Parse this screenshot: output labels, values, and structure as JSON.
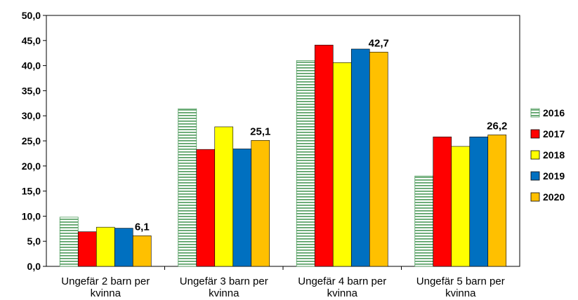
{
  "chart_data": {
    "type": "bar",
    "categories": [
      [
        "Ungefär 2 barn per",
        "kvinna"
      ],
      [
        "Ungefär 3 barn per",
        "kvinna"
      ],
      [
        "Ungefär 4 barn per",
        "kvinna"
      ],
      [
        "Ungefär 5 barn per",
        "kvinna"
      ]
    ],
    "series": [
      {
        "name": "2016",
        "values": [
          9.8,
          31.4,
          41.0,
          18.0
        ],
        "color": "#ffffff",
        "pattern": "green-horizontal-stripes"
      },
      {
        "name": "2017",
        "values": [
          6.9,
          23.3,
          44.1,
          25.8
        ],
        "color": "#ff0000"
      },
      {
        "name": "2018",
        "values": [
          7.8,
          27.8,
          40.6,
          23.9
        ],
        "color": "#ffff00"
      },
      {
        "name": "2019",
        "values": [
          7.6,
          23.4,
          43.3,
          25.8
        ],
        "color": "#0070c0"
      },
      {
        "name": "2020",
        "values": [
          6.1,
          25.1,
          42.7,
          26.2
        ],
        "color": "#ffc000"
      }
    ],
    "data_labels": [
      {
        "series": "2020",
        "category_index": 0,
        "text": "6,1"
      },
      {
        "series": "2020",
        "category_index": 1,
        "text": "25,1"
      },
      {
        "series": "2020",
        "category_index": 2,
        "text": "42,7"
      },
      {
        "series": "2020",
        "category_index": 3,
        "text": "26,2"
      }
    ],
    "y_ticks": [
      "0,0",
      "5,0",
      "10,0",
      "15,0",
      "20,0",
      "25,0",
      "30,0",
      "35,0",
      "40,0",
      "45,0",
      "50,0"
    ],
    "ylim": [
      0,
      50
    ],
    "title": "",
    "xlabel": "",
    "ylabel": "",
    "grid": false,
    "legend": "right"
  }
}
